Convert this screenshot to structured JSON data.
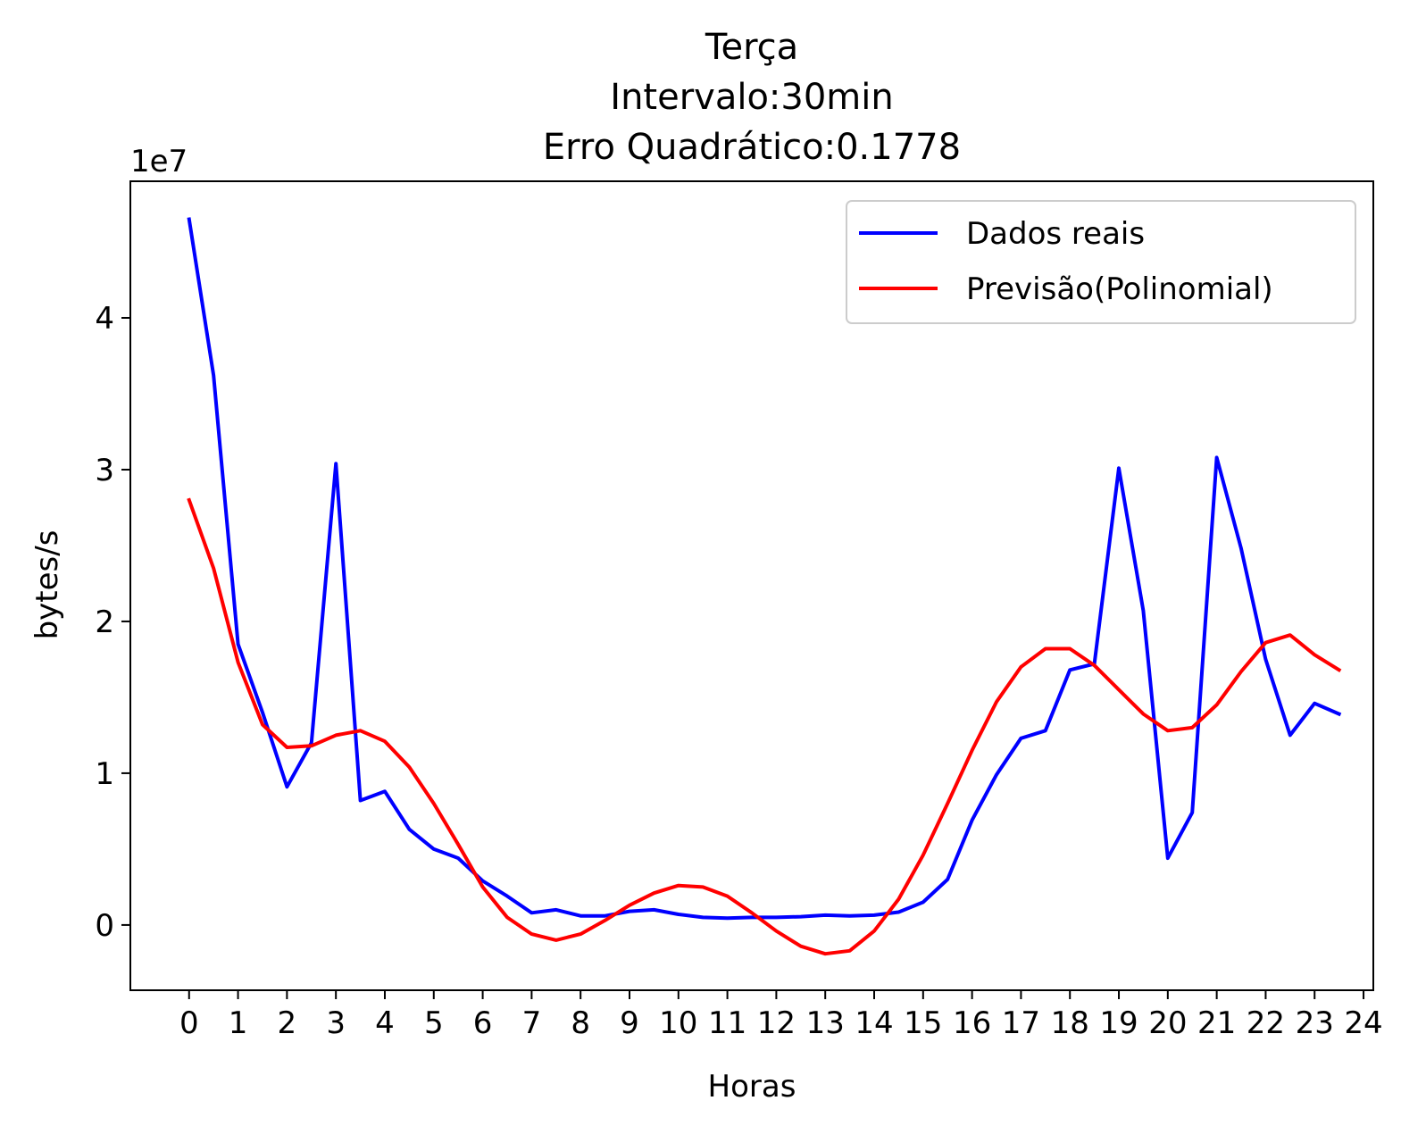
{
  "chart_data": {
    "type": "line",
    "title_lines": [
      "Terça",
      "Intervalo:30min",
      "Erro Quadrático:0.1778"
    ],
    "xlabel": "Horas",
    "ylabel": "bytes/s",
    "offset_label": "1e7",
    "y_scale": 10000000,
    "xlim": [
      -1.2,
      24.2
    ],
    "ylim": [
      -4300000,
      49000000
    ],
    "xticks": [
      0,
      1,
      2,
      3,
      4,
      5,
      6,
      7,
      8,
      9,
      10,
      11,
      12,
      13,
      14,
      15,
      16,
      17,
      18,
      19,
      20,
      21,
      22,
      23,
      24
    ],
    "xtick_labels": [
      "0",
      "1",
      "2",
      "3",
      "4",
      "5",
      "6",
      "7",
      "8",
      "9",
      "10",
      "11",
      "12",
      "13",
      "14",
      "15",
      "16",
      "17",
      "18",
      "19",
      "20",
      "21",
      "22",
      "23",
      "24"
    ],
    "yticks": [
      0,
      10000000,
      20000000,
      30000000,
      40000000
    ],
    "ytick_labels": [
      "0",
      "1",
      "2",
      "3",
      "4"
    ],
    "grid": false,
    "legend_position": "top-right",
    "x": [
      0,
      0.5,
      1,
      1.5,
      2,
      2.5,
      3,
      3.5,
      4,
      4.5,
      5,
      5.5,
      6,
      6.5,
      7,
      7.5,
      8,
      8.5,
      9,
      9.5,
      10,
      10.5,
      11,
      11.5,
      12,
      12.5,
      13,
      13.5,
      14,
      14.5,
      15,
      15.5,
      16,
      16.5,
      17,
      17.5,
      18,
      18.5,
      19,
      19.5,
      20,
      20.5,
      21,
      21.5,
      22,
      22.5,
      23,
      23.5
    ],
    "series": [
      {
        "name": "Dados reais",
        "color": "#0000ff",
        "values": [
          46500000,
          36200000,
          18500000,
          14000000,
          9100000,
          12000000,
          30400000,
          8200000,
          8800000,
          6300000,
          5000000,
          4400000,
          2900000,
          1900000,
          800000,
          1000000,
          600000,
          600000,
          900000,
          1000000,
          700000,
          500000,
          450000,
          500000,
          500000,
          550000,
          650000,
          600000,
          650000,
          850000,
          1500000,
          3000000,
          6900000,
          9900000,
          12300000,
          12800000,
          16800000,
          17200000,
          30100000,
          20700000,
          4400000,
          7400000,
          30800000,
          24800000,
          17500000,
          12500000,
          14600000,
          13900000
        ]
      },
      {
        "name": "Previsão(Polinomial)",
        "color": "#ff0000",
        "values": [
          28000000,
          23500000,
          17300000,
          13200000,
          11700000,
          11800000,
          12500000,
          12800000,
          12100000,
          10400000,
          8000000,
          5300000,
          2500000,
          500000,
          -600000,
          -1000000,
          -600000,
          300000,
          1300000,
          2100000,
          2600000,
          2500000,
          1900000,
          800000,
          -400000,
          -1400000,
          -1900000,
          -1700000,
          -400000,
          1700000,
          4600000,
          8000000,
          11500000,
          14700000,
          17000000,
          18200000,
          18200000,
          17100000,
          15500000,
          13900000,
          12800000,
          13000000,
          14500000,
          16700000,
          18600000,
          19100000,
          17800000,
          16800000
        ]
      }
    ]
  }
}
